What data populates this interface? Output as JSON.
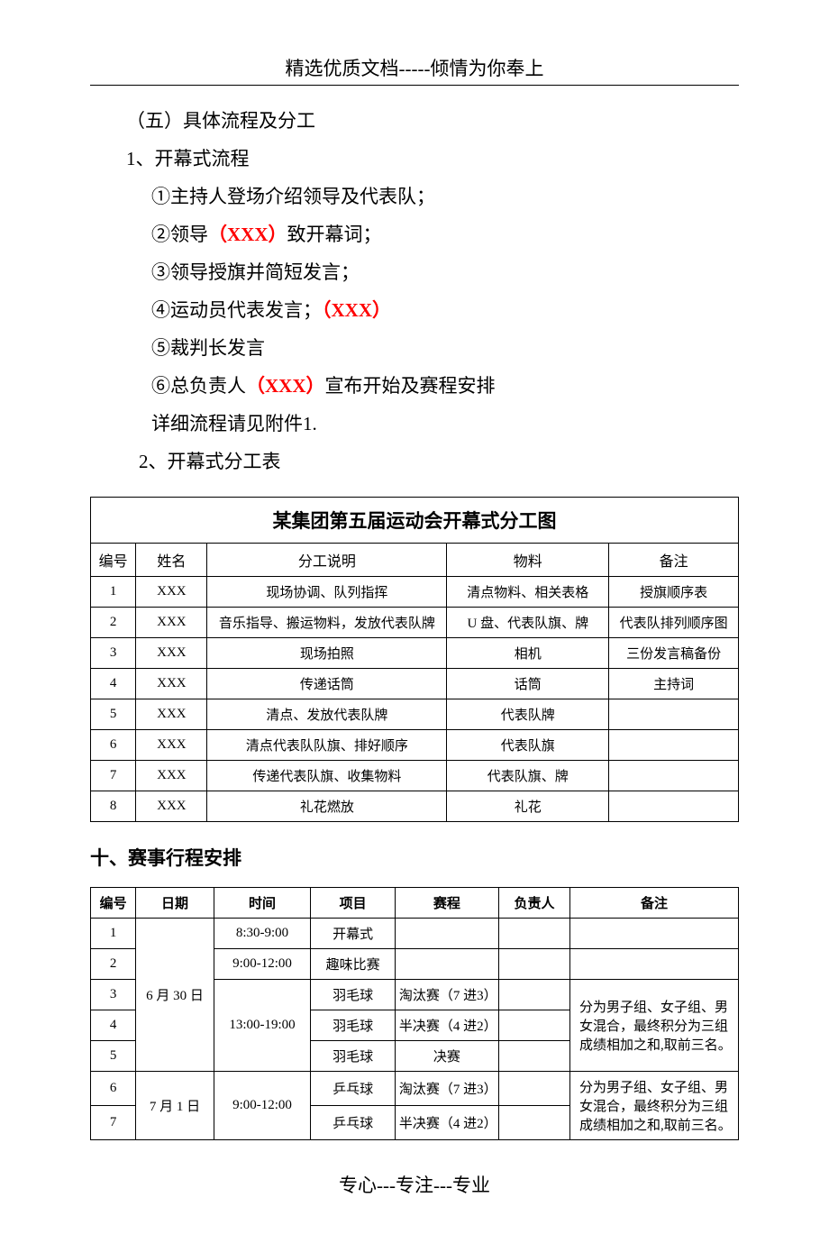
{
  "header": "精选优质文档-----倾情为你奉上",
  "footer": "专心---专注---专业",
  "body": {
    "h5": "（五）具体流程及分工",
    "p1": "1、开幕式流程",
    "s1": "①主持人登场介绍领导及代表队；",
    "s2a": "②领导",
    "s2b": "（XXX）",
    "s2c": "致开幕词；",
    "s3": "③领导授旗并简短发言；",
    "s4a": "④运动员代表发言；",
    "s4b": "（XXX）",
    "s5": "⑤裁判长发言",
    "s6a": "⑥总负责人",
    "s6b": "（XXX）",
    "s6c": "宣布开始及赛程安排",
    "s7": "详细流程请见附件1.",
    "p2": "2、开幕式分工表"
  },
  "table1": {
    "title": "某集团第五届运动会开幕式分工图",
    "cols": [
      "编号",
      "姓名",
      "分工说明",
      "物料",
      "备注"
    ],
    "rows": [
      [
        "1",
        "XXX",
        "现场协调、队列指挥",
        "清点物料、相关表格",
        "授旗顺序表"
      ],
      [
        "2",
        "XXX",
        "音乐指导、搬运物料，发放代表队牌",
        "U 盘、代表队旗、牌",
        "代表队排列顺序图"
      ],
      [
        "3",
        "XXX",
        "现场拍照",
        "相机",
        "三份发言稿备份"
      ],
      [
        "4",
        "XXX",
        "传递话筒",
        "话筒",
        "主持词"
      ],
      [
        "5",
        "XXX",
        "清点、发放代表队牌",
        "代表队牌",
        ""
      ],
      [
        "6",
        "XXX",
        "清点代表队队旗、排好顺序",
        "代表队旗",
        ""
      ],
      [
        "7",
        "XXX",
        "传递代表队旗、收集物料",
        "代表队旗、牌",
        ""
      ],
      [
        "8",
        "XXX",
        "礼花燃放",
        "礼花",
        ""
      ]
    ]
  },
  "section10": "十、赛事行程安排",
  "table2": {
    "cols": [
      "编号",
      "日期",
      "时间",
      "项目",
      "赛程",
      "负责人",
      "备注"
    ],
    "date1": "6 月 30 日",
    "date2": "7 月 1 日",
    "t1": "8:30-9:00",
    "t2": "9:00-12:00",
    "t3": "13:00-19:00",
    "t4": "9:00-12:00",
    "r1": [
      "1",
      "开幕式",
      "",
      "",
      ""
    ],
    "r2": [
      "2",
      "趣味比赛",
      "",
      "",
      ""
    ],
    "r3": [
      "3",
      "羽毛球",
      "淘汰赛（7 进3）",
      ""
    ],
    "r4": [
      "4",
      "羽毛球",
      "半决赛（4 进2）",
      ""
    ],
    "r5": [
      "5",
      "羽毛球",
      "决赛",
      ""
    ],
    "r6": [
      "6",
      "乒乓球",
      "淘汰赛（7 进3）",
      ""
    ],
    "r7": [
      "7",
      "乒乓球",
      "半决赛（4 进2）",
      ""
    ],
    "note1": "分为男子组、女子组、男女混合，最终积分为三组成绩相加之和,取前三名。",
    "note2": "分为男子组、女子组、男女混合，最终积分为三组成绩相加之和,取前三名。"
  },
  "widths": {
    "t1": {
      "c0": "7%",
      "c1": "11%",
      "c2": "37%",
      "c3": "25%",
      "c4": "20%"
    },
    "t2": {
      "c0": "7%",
      "c1": "12%",
      "c2": "15%",
      "c3": "13%",
      "c4": "16%",
      "c5": "11%",
      "c6": "26%"
    }
  }
}
